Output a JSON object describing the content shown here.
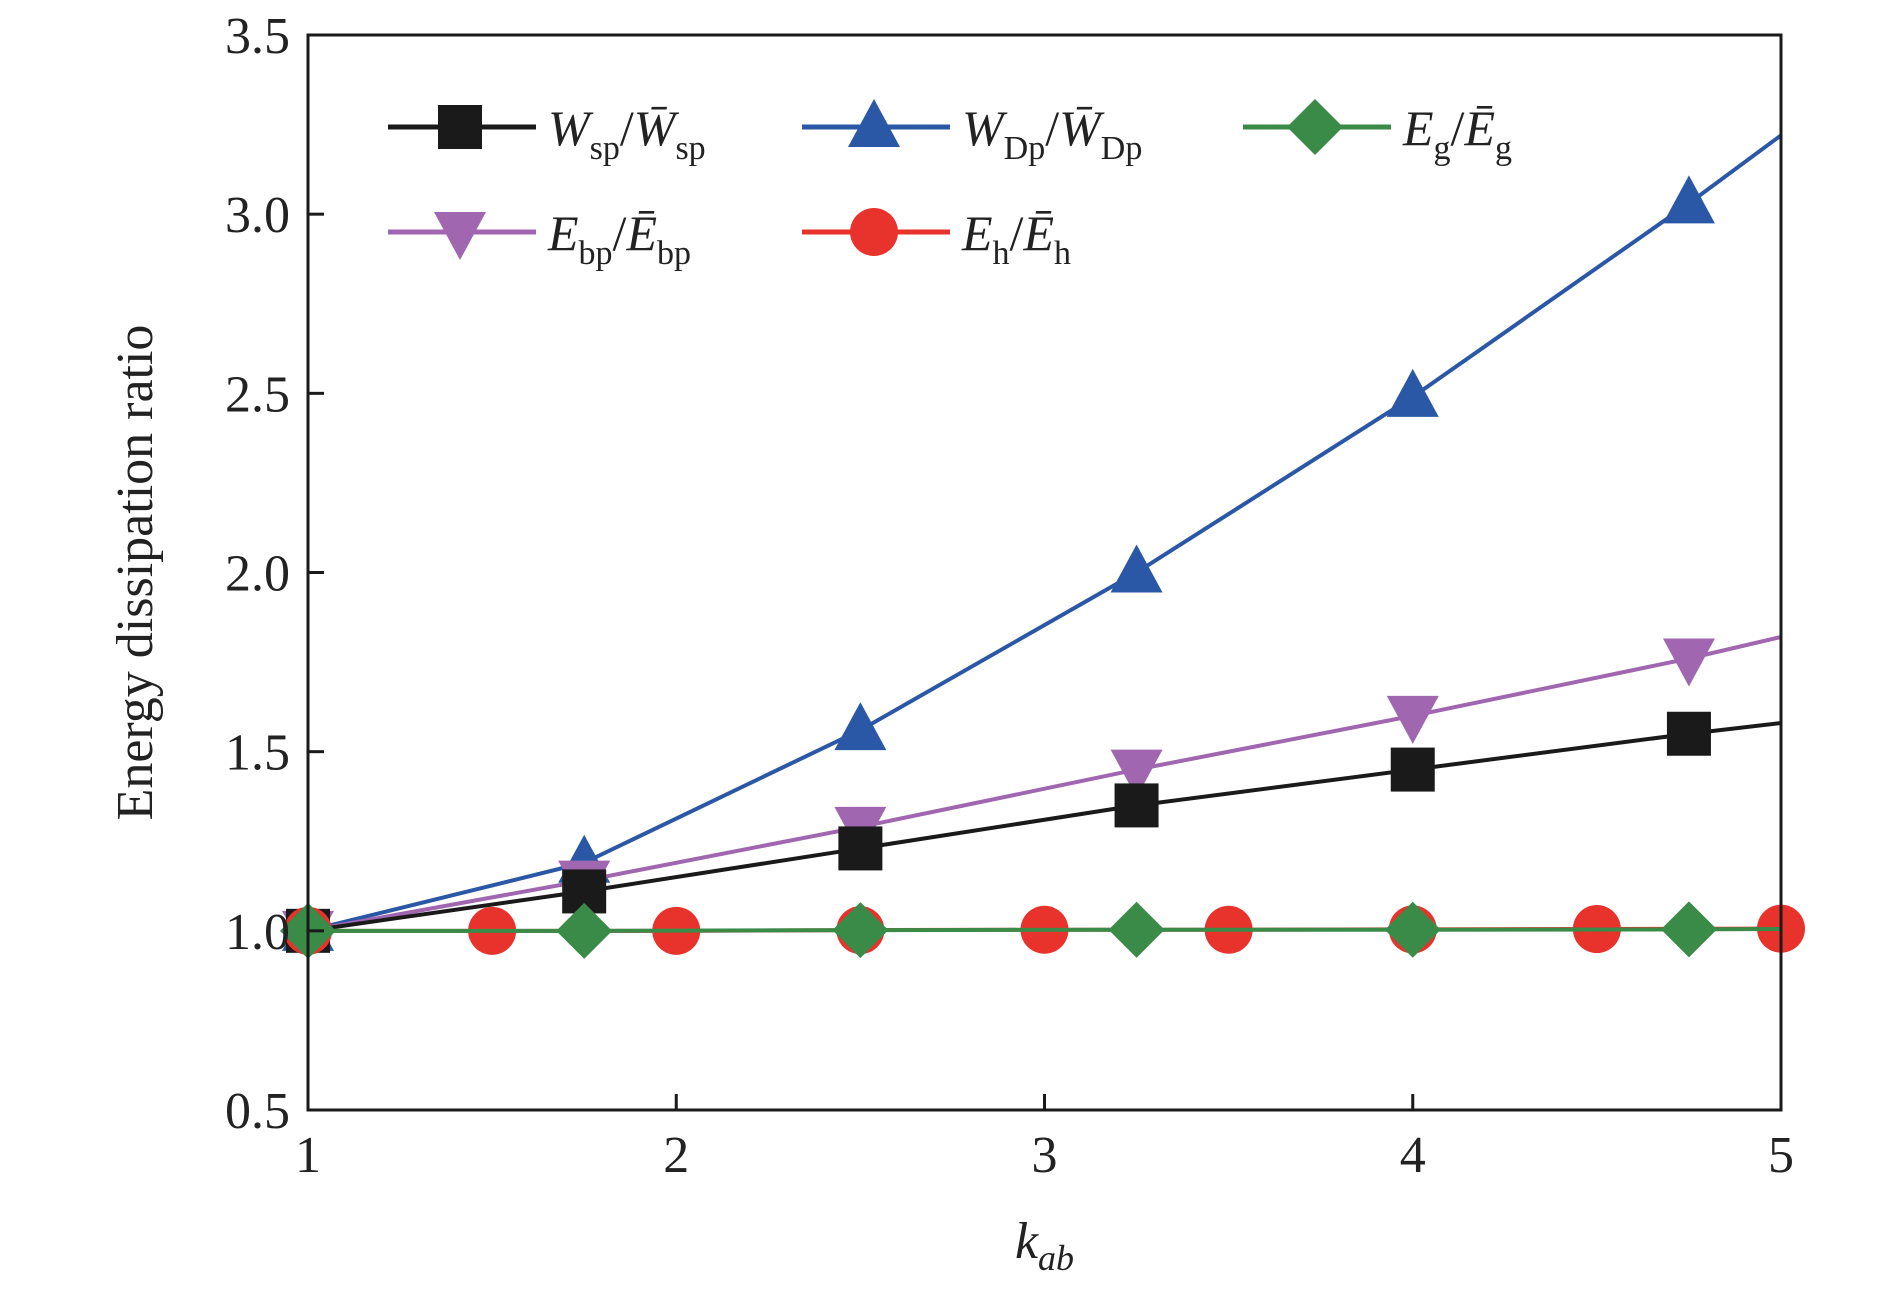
{
  "chart_data": {
    "type": "line",
    "title": "",
    "xlabel": "k",
    "xlabel_sub": "ab",
    "ylabel": "Energy dissipation ratio",
    "xlim": [
      1,
      5
    ],
    "ylim": [
      0.5,
      3.5
    ],
    "xticks": [
      "1",
      "2",
      "3",
      "4",
      "5"
    ],
    "yticks": [
      "0.5",
      "1.0",
      "1.5",
      "2.0",
      "2.5",
      "3.0",
      "3.5"
    ],
    "grid": false,
    "legend_position": "top",
    "series": [
      {
        "id": "wsp",
        "name": "W",
        "name_sub": "sp",
        "name_den": "W̄",
        "color": "#1a1a1a",
        "marker": "square",
        "x": [
          1,
          1.75,
          2.5,
          3.25,
          4,
          4.75,
          5
        ],
        "y": [
          1.0,
          1.11,
          1.23,
          1.35,
          1.45,
          1.55,
          1.58
        ],
        "marker_x": [
          1,
          1.75,
          2.5,
          3.25,
          4,
          4.75
        ]
      },
      {
        "id": "wdp",
        "name": "W",
        "name_sub": "Dp",
        "name_den": "W̄",
        "color": "#2b58a6",
        "marker": "triangle-up",
        "x": [
          1,
          1.75,
          2.5,
          3.25,
          4,
          4.75,
          5
        ],
        "y": [
          1.0,
          1.19,
          1.56,
          2.0,
          2.49,
          3.03,
          3.22
        ],
        "marker_x": [
          1,
          1.75,
          2.5,
          3.25,
          4,
          4.75
        ]
      },
      {
        "id": "eg",
        "name": "E",
        "name_sub": "g",
        "name_den": "Ē",
        "color": "#3a8a48",
        "marker": "diamond",
        "x": [
          1,
          1.75,
          2.5,
          3.25,
          4,
          4.75,
          5
        ],
        "y": [
          1.0,
          1.0,
          1.002,
          1.003,
          1.003,
          1.004,
          1.005
        ],
        "marker_x": [
          1,
          1.75,
          2.5,
          3.25,
          4,
          4.75
        ]
      },
      {
        "id": "ebp",
        "name": "E",
        "name_sub": "bp",
        "name_den": "Ē",
        "color": "#a066b0",
        "marker": "triangle-down",
        "x": [
          1,
          1.75,
          2.5,
          3.25,
          4,
          4.75,
          5
        ],
        "y": [
          1.0,
          1.14,
          1.29,
          1.45,
          1.6,
          1.76,
          1.82
        ],
        "marker_x": [
          1,
          1.75,
          2.5,
          3.25,
          4,
          4.75
        ]
      },
      {
        "id": "eh",
        "name": "E",
        "name_sub": "h",
        "name_den": "Ē",
        "color": "#e8322c",
        "marker": "circle",
        "x": [
          1,
          1.5,
          2,
          2.5,
          3,
          3.5,
          4,
          4.5,
          5
        ],
        "y": [
          1.0,
          1.0,
          1.0,
          1.002,
          1.003,
          1.003,
          1.004,
          1.005,
          1.006
        ],
        "marker_x": [
          1,
          1.5,
          2,
          2.5,
          3,
          3.5,
          4,
          4.5,
          5
        ]
      }
    ]
  }
}
